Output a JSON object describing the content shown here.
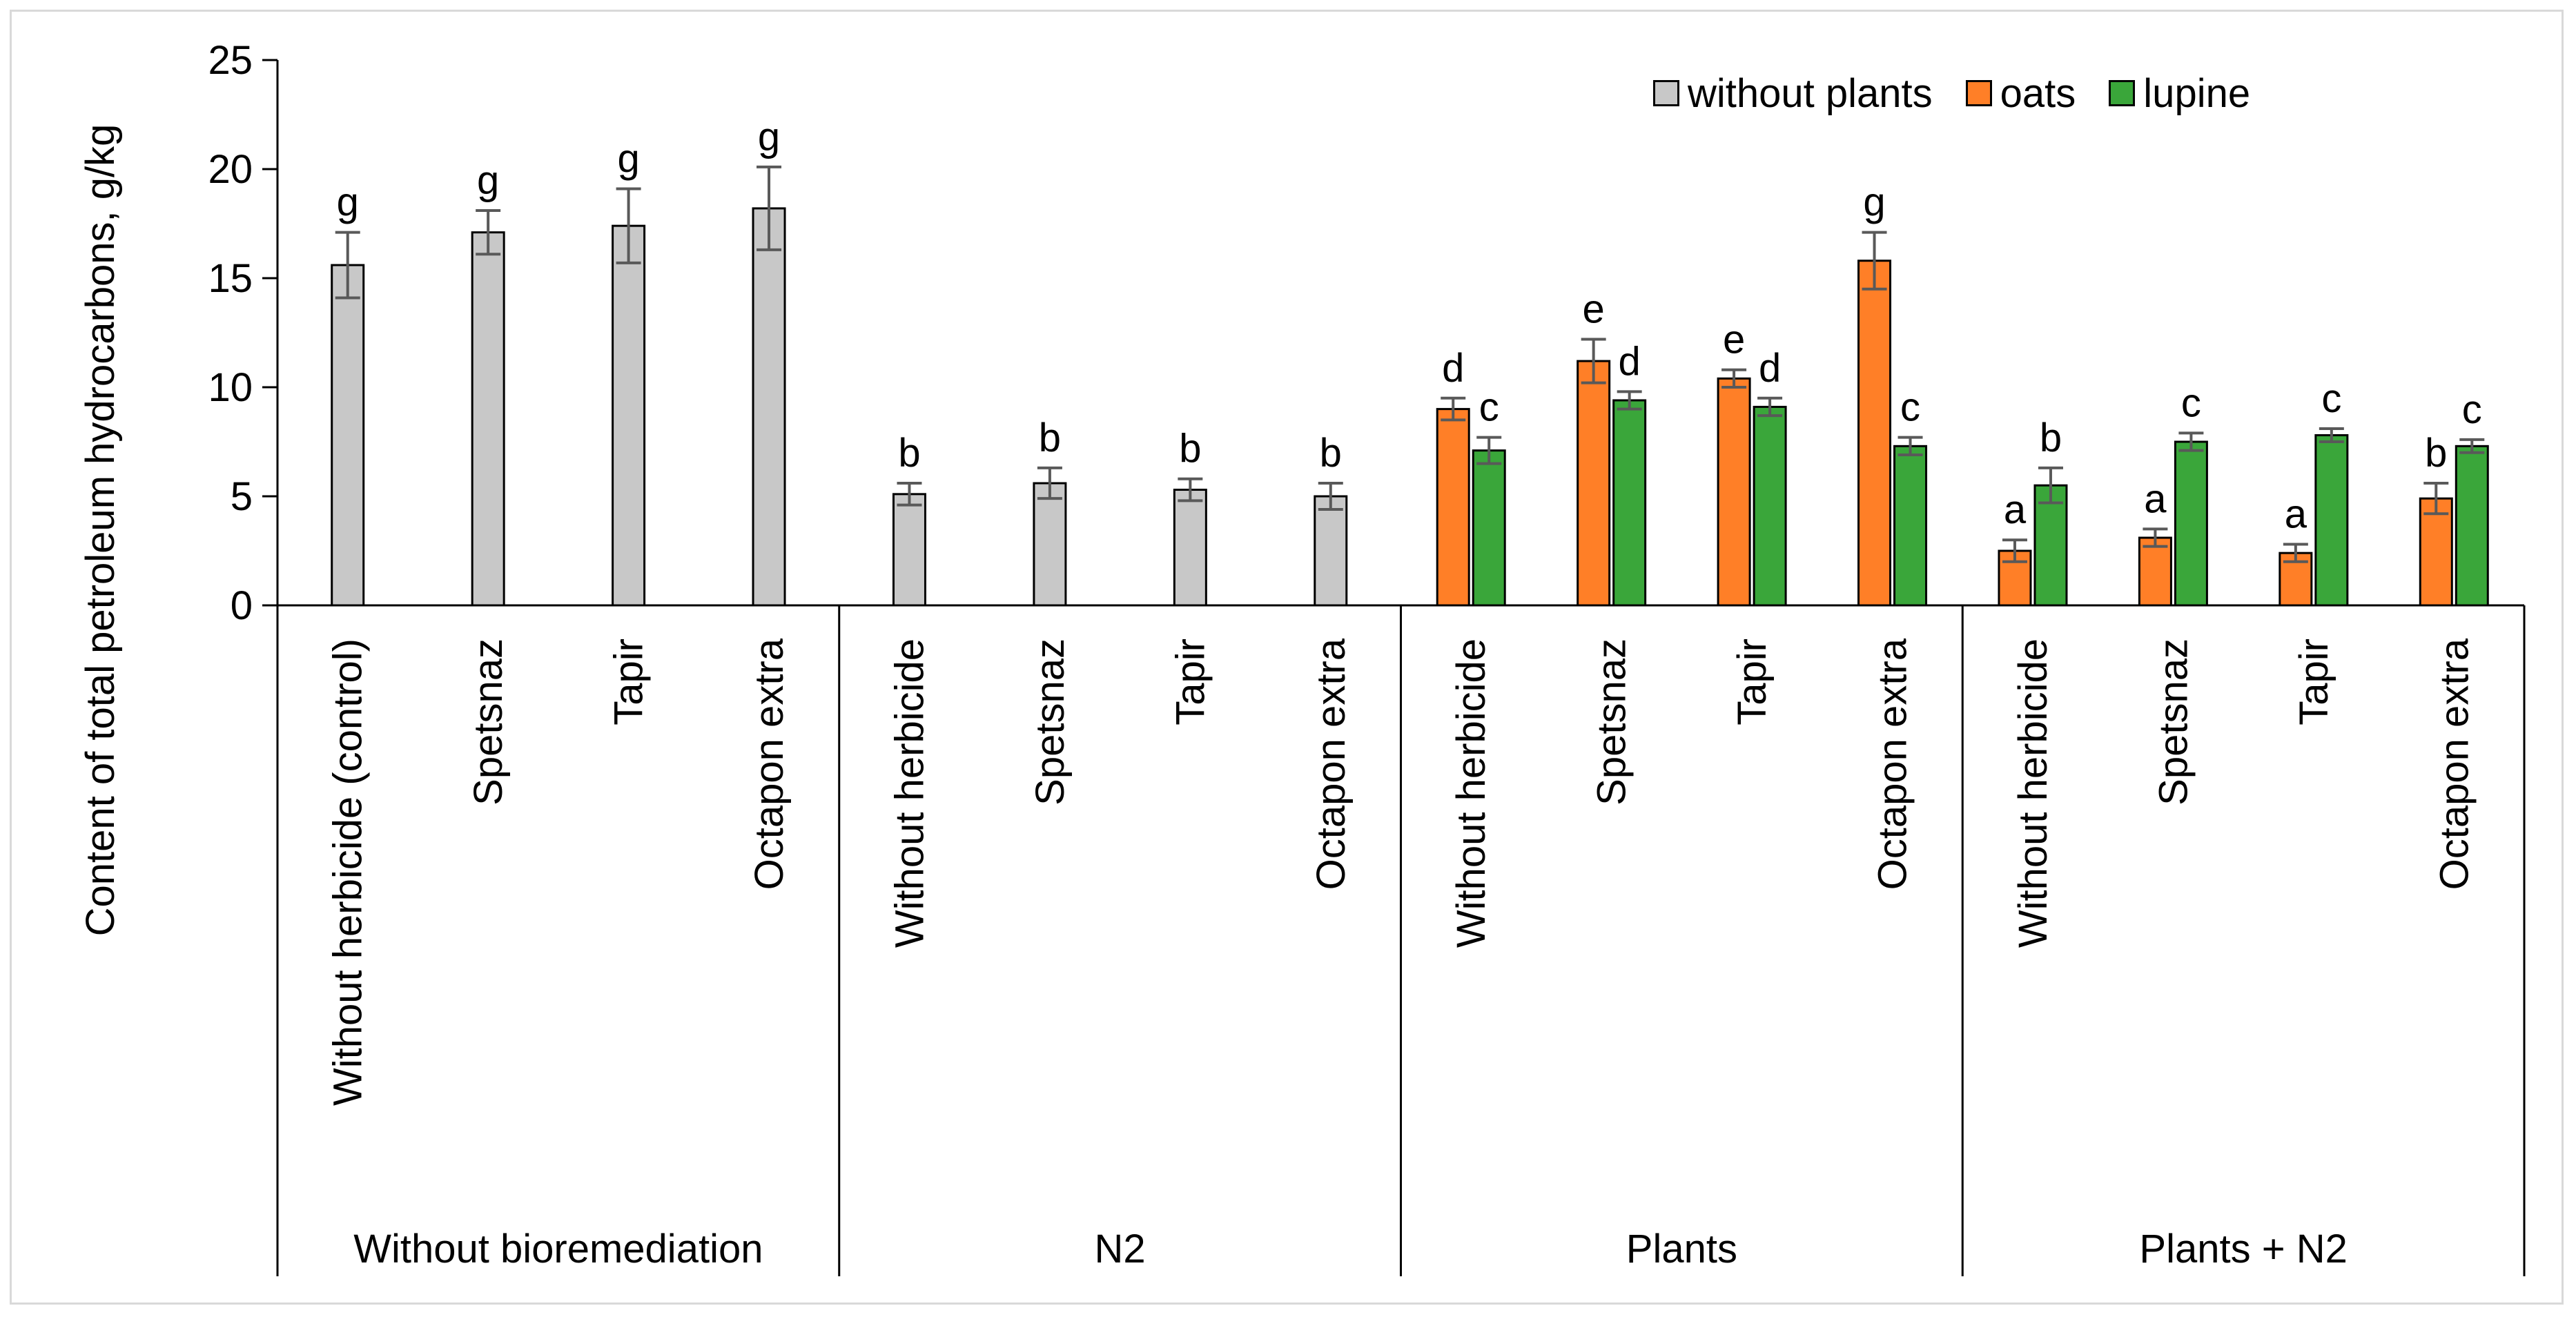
{
  "chart_data": {
    "type": "bar",
    "title": "",
    "xlabel": "",
    "ylabel": "Content of total petroleum hydrocarbons, g/kg",
    "ylim": [
      0,
      25
    ],
    "yticks": [
      "0",
      "5",
      "10",
      "15",
      "20",
      "25"
    ],
    "grid": false,
    "legend_position": "top-right",
    "series": [
      {
        "name": "without plants",
        "color": "#c8c8c8"
      },
      {
        "name": "oats",
        "color": "#ff7f27"
      },
      {
        "name": "lupine",
        "color": "#3aa63a"
      }
    ],
    "groups": [
      {
        "label": "Without bioremediation",
        "categories": [
          {
            "label": "Without herbicide (control)",
            "bars": [
              {
                "series": 0,
                "value": 15.6,
                "error": 1.5,
                "letter": "g"
              }
            ]
          },
          {
            "label": "Spetsnaz",
            "bars": [
              {
                "series": 0,
                "value": 17.1,
                "error": 1.0,
                "letter": "g"
              }
            ]
          },
          {
            "label": "Tapir",
            "bars": [
              {
                "series": 0,
                "value": 17.4,
                "error": 1.7,
                "letter": "g"
              }
            ]
          },
          {
            "label": "Octapon extra",
            "bars": [
              {
                "series": 0,
                "value": 18.2,
                "error": 1.9,
                "letter": "g"
              }
            ]
          }
        ]
      },
      {
        "label": "N2",
        "categories": [
          {
            "label": "Without herbicide",
            "bars": [
              {
                "series": 0,
                "value": 5.1,
                "error": 0.5,
                "letter": "b"
              }
            ]
          },
          {
            "label": "Spetsnaz",
            "bars": [
              {
                "series": 0,
                "value": 5.6,
                "error": 0.7,
                "letter": "b"
              }
            ]
          },
          {
            "label": "Tapir",
            "bars": [
              {
                "series": 0,
                "value": 5.3,
                "error": 0.5,
                "letter": "b"
              }
            ]
          },
          {
            "label": "Octapon extra",
            "bars": [
              {
                "series": 0,
                "value": 5.0,
                "error": 0.6,
                "letter": "b"
              }
            ]
          }
        ]
      },
      {
        "label": "Plants",
        "categories": [
          {
            "label": "Without herbicide",
            "bars": [
              {
                "series": 1,
                "value": 9.0,
                "error": 0.5,
                "letter": "d"
              },
              {
                "series": 2,
                "value": 7.1,
                "error": 0.6,
                "letter": "c"
              }
            ]
          },
          {
            "label": "Spetsnaz",
            "bars": [
              {
                "series": 1,
                "value": 11.2,
                "error": 1.0,
                "letter": "e"
              },
              {
                "series": 2,
                "value": 9.4,
                "error": 0.4,
                "letter": "d"
              }
            ]
          },
          {
            "label": "Tapir",
            "bars": [
              {
                "series": 1,
                "value": 10.4,
                "error": 0.4,
                "letter": "e"
              },
              {
                "series": 2,
                "value": 9.1,
                "error": 0.4,
                "letter": "d"
              }
            ]
          },
          {
            "label": "Octapon extra",
            "bars": [
              {
                "series": 1,
                "value": 15.8,
                "error": 1.3,
                "letter": "g"
              },
              {
                "series": 2,
                "value": 7.3,
                "error": 0.4,
                "letter": "c"
              }
            ]
          }
        ]
      },
      {
        "label": "Plants + N2",
        "categories": [
          {
            "label": "Without herbicide",
            "bars": [
              {
                "series": 1,
                "value": 2.5,
                "error": 0.5,
                "letter": "a"
              },
              {
                "series": 2,
                "value": 5.5,
                "error": 0.8,
                "letter": "b"
              }
            ]
          },
          {
            "label": "Spetsnaz",
            "bars": [
              {
                "series": 1,
                "value": 3.1,
                "error": 0.4,
                "letter": "a"
              },
              {
                "series": 2,
                "value": 7.5,
                "error": 0.4,
                "letter": "c"
              }
            ]
          },
          {
            "label": "Tapir",
            "bars": [
              {
                "series": 1,
                "value": 2.4,
                "error": 0.4,
                "letter": "a"
              },
              {
                "series": 2,
                "value": 7.8,
                "error": 0.3,
                "letter": "c"
              }
            ]
          },
          {
            "label": "Octapon extra",
            "bars": [
              {
                "series": 1,
                "value": 4.9,
                "error": 0.7,
                "letter": "b"
              },
              {
                "series": 2,
                "value": 7.3,
                "error": 0.3,
                "letter": "c"
              }
            ]
          }
        ]
      }
    ]
  }
}
